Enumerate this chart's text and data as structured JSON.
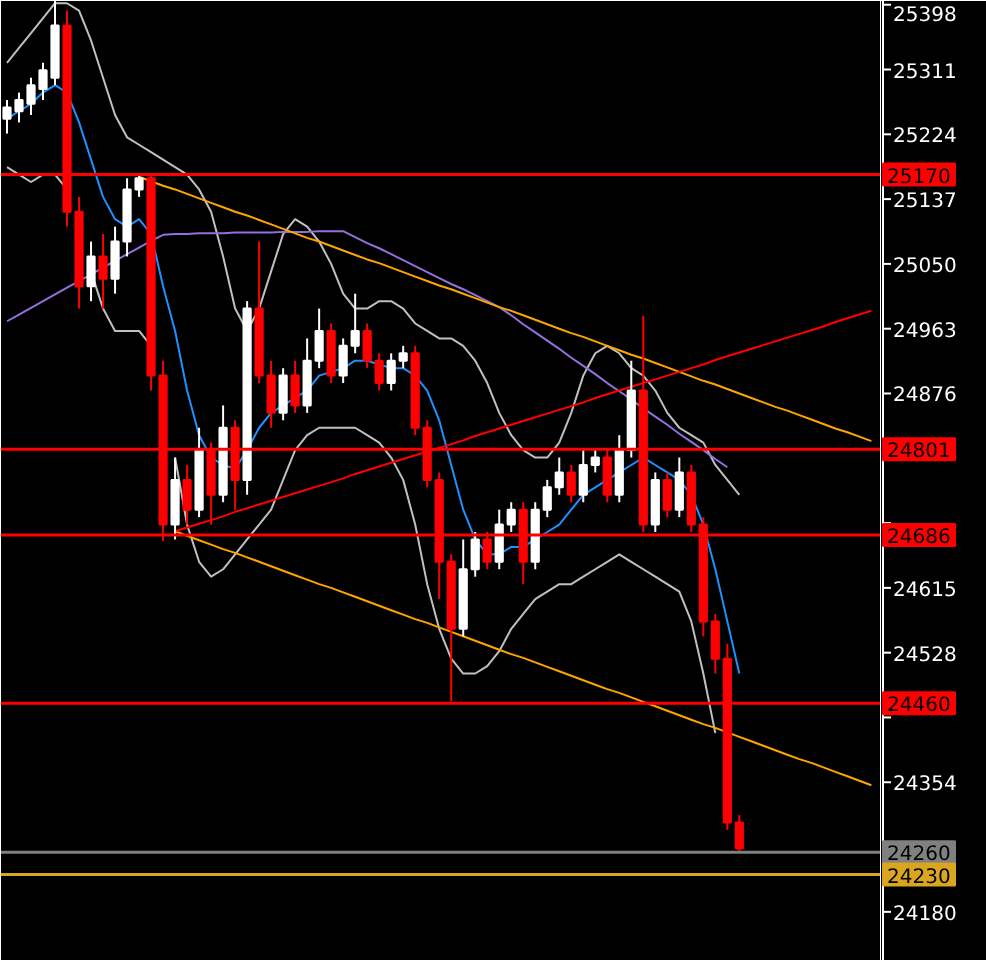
{
  "chart_data": {
    "type": "candlestick",
    "categories": [
      null,
      null,
      null,
      null,
      null,
      null,
      null,
      null,
      null,
      null,
      null,
      null,
      null,
      null,
      null,
      null,
      null,
      null,
      null,
      null,
      null,
      null,
      null,
      null,
      null,
      null,
      null,
      null,
      null,
      null,
      null,
      null,
      null,
      null,
      null,
      null,
      null,
      null,
      null,
      null,
      null,
      null,
      null,
      null,
      null,
      null,
      null,
      null,
      null,
      null,
      null,
      null,
      null,
      null,
      null,
      null,
      null,
      null,
      null,
      null,
      null,
      null,
      null,
      null,
      null,
      null,
      null,
      null,
      null,
      null,
      null,
      null,
      null
    ],
    "ohlc": [
      [
        25245,
        25270,
        25225,
        25260
      ],
      [
        25255,
        25280,
        25240,
        25270
      ],
      [
        25265,
        25300,
        25250,
        25290
      ],
      [
        25285,
        25320,
        25270,
        25310
      ],
      [
        25300,
        25403,
        25290,
        25370
      ],
      [
        25370,
        25390,
        25100,
        25120
      ],
      [
        25120,
        25140,
        24990,
        25020
      ],
      [
        25020,
        25080,
        25000,
        25060
      ],
      [
        25060,
        25090,
        24990,
        25030
      ],
      [
        25030,
        25100,
        25010,
        25080
      ],
      [
        25080,
        25165,
        25060,
        25150
      ],
      [
        25150,
        25172,
        25140,
        25165
      ],
      [
        25165,
        25170,
        24880,
        24900
      ],
      [
        24900,
        24920,
        24678,
        24700
      ],
      [
        24700,
        24790,
        24680,
        24760
      ],
      [
        24760,
        24780,
        24700,
        24720
      ],
      [
        24720,
        24830,
        24710,
        24800
      ],
      [
        24800,
        24810,
        24700,
        24740
      ],
      [
        24740,
        24860,
        24730,
        24830
      ],
      [
        24830,
        24840,
        24720,
        24760
      ],
      [
        24760,
        25000,
        24740,
        24990
      ],
      [
        24990,
        25080,
        24890,
        24900
      ],
      [
        24900,
        24920,
        24830,
        24850
      ],
      [
        24850,
        24910,
        24840,
        24900
      ],
      [
        24900,
        24920,
        24850,
        24860
      ],
      [
        24860,
        24950,
        24850,
        24920
      ],
      [
        24920,
        24990,
        24910,
        24960
      ],
      [
        24960,
        24970,
        24890,
        24900
      ],
      [
        24900,
        24950,
        24890,
        24940
      ],
      [
        24940,
        25010,
        24930,
        24960
      ],
      [
        24960,
        24970,
        24910,
        24920
      ],
      [
        24920,
        24930,
        24880,
        24890
      ],
      [
        24890,
        24930,
        24880,
        24920
      ],
      [
        24920,
        24940,
        24910,
        24930
      ],
      [
        24930,
        24940,
        24820,
        24830
      ],
      [
        24830,
        24840,
        24750,
        24760
      ],
      [
        24760,
        24770,
        24600,
        24650
      ],
      [
        24650,
        24660,
        24463,
        24560
      ],
      [
        24560,
        24680,
        24550,
        24640
      ],
      [
        24640,
        24690,
        24630,
        24680
      ],
      [
        24680,
        24690,
        24640,
        24650
      ],
      [
        24650,
        24720,
        24640,
        24700
      ],
      [
        24700,
        24730,
        24690,
        24720
      ],
      [
        24720,
        24730,
        24620,
        24650
      ],
      [
        24650,
        24730,
        24640,
        24720
      ],
      [
        24720,
        24760,
        24710,
        24750
      ],
      [
        24750,
        24790,
        24740,
        24770
      ],
      [
        24770,
        24780,
        24730,
        24740
      ],
      [
        24740,
        24800,
        24730,
        24780
      ],
      [
        24780,
        24800,
        24770,
        24790
      ],
      [
        24790,
        24800,
        24730,
        24740
      ],
      [
        24740,
        24820,
        24730,
        24800
      ],
      [
        24800,
        24920,
        24790,
        24880
      ],
      [
        24880,
        24980,
        24690,
        24700
      ],
      [
        24700,
        24770,
        24690,
        24760
      ],
      [
        24760,
        24770,
        24710,
        24720
      ],
      [
        24720,
        24790,
        24710,
        24770
      ],
      [
        24770,
        24780,
        24690,
        24700
      ],
      [
        24700,
        24710,
        24550,
        24570
      ],
      [
        24570,
        24580,
        24500,
        24520
      ],
      [
        24520,
        24540,
        24290,
        24300
      ],
      [
        24300,
        24310,
        24262,
        24265
      ],
      null,
      null,
      null,
      null,
      null,
      null,
      null,
      null,
      null,
      null,
      null
    ],
    "colors": [
      "#ffffff",
      "#ffffff",
      "#ffffff",
      "#ffffff",
      "#ffffff",
      "#ff0000",
      "#ff0000",
      "#ffffff",
      "#ff0000",
      "#ffffff",
      "#ffffff",
      "#ffffff",
      "#ff0000",
      "#ff0000",
      "#ffffff",
      "#ff0000",
      "#ffffff",
      "#ff0000",
      "#ffffff",
      "#ff0000",
      "#ffffff",
      "#ff0000",
      "#ff0000",
      "#ffffff",
      "#ff0000",
      "#ffffff",
      "#ffffff",
      "#ff0000",
      "#ffffff",
      "#ffffff",
      "#ff0000",
      "#ff0000",
      "#ffffff",
      "#ffffff",
      "#ff0000",
      "#ff0000",
      "#ff0000",
      "#ff0000",
      "#ffffff",
      "#ffffff",
      "#ff0000",
      "#ffffff",
      "#ffffff",
      "#ff0000",
      "#ffffff",
      "#ffffff",
      "#ffffff",
      "#ff0000",
      "#ffffff",
      "#ffffff",
      "#ff0000",
      "#ffffff",
      "#ffffff",
      "#ff0000",
      "#ffffff",
      "#ff0000",
      "#ffffff",
      "#ff0000",
      "#ff0000",
      "#ff0000",
      "#ff0000",
      "#ff0000",
      null,
      null,
      null,
      null,
      null,
      null,
      null,
      null,
      null,
      null,
      null
    ],
    "series": [
      {
        "type": "line",
        "color": "#c0c0c0",
        "values": [
          25320,
          25340,
          25360,
          25380,
          25400,
          25400,
          25390,
          25350,
          25300,
          25250,
          25220,
          25210,
          25200,
          25190,
          25180,
          25170,
          25150,
          25120,
          25060,
          24990,
          24960,
          24990,
          25040,
          25090,
          25110,
          25100,
          25080,
          25050,
          25010,
          24990,
          24990,
          25000,
          25000,
          24990,
          24970,
          24960,
          24950,
          24950,
          24940,
          24920,
          24890,
          24850,
          24820,
          24800,
          24790,
          24790,
          24810,
          24850,
          24900,
          24930,
          24940,
          24930,
          24910,
          24900,
          24880,
          24850,
          24830,
          24820,
          24810,
          24780,
          24760,
          24740,
          null,
          null,
          null,
          null,
          null,
          null,
          null,
          null,
          null,
          null,
          null
        ]
      },
      {
        "type": "line",
        "color": "#c0c0c0",
        "values": [
          25180,
          25170,
          25160,
          25170,
          25170,
          25150,
          null,
          25040,
          24990,
          24960,
          24960,
          24960,
          24940,
          null,
          24790,
          24700,
          24650,
          24630,
          24640,
          24660,
          24680,
          24700,
          24720,
          24760,
          24800,
          24820,
          24830,
          24830,
          24830,
          24830,
          24820,
          24810,
          24790,
          24760,
          24700,
          24620,
          24560,
          24520,
          24500,
          24500,
          24510,
          24530,
          24560,
          24580,
          24600,
          24610,
          24620,
          24620,
          24630,
          24640,
          24650,
          24660,
          24650,
          24640,
          24630,
          24620,
          24610,
          24570,
          24500,
          24420,
          null,
          null,
          null,
          null,
          null,
          null,
          null,
          null,
          null,
          null,
          null,
          null,
          null
        ]
      },
      {
        "type": "line",
        "color": "#1e90ff",
        "values": [
          25245,
          25255,
          25265,
          25280,
          25290,
          25280,
          25240,
          25190,
          25140,
          25110,
          25100,
          25110,
          25090,
          25020,
          24960,
          24880,
          24820,
          24790,
          24780,
          24775,
          24800,
          24830,
          24850,
          24860,
          24870,
          24880,
          24900,
          24905,
          24910,
          24920,
          24920,
          24915,
          24910,
          24910,
          24900,
          24880,
          24840,
          24780,
          24720,
          24680,
          24660,
          24660,
          24670,
          24670,
          24680,
          24690,
          24700,
          24720,
          24740,
          24750,
          24760,
          24770,
          24780,
          24790,
          24780,
          24770,
          24760,
          24740,
          24700,
          24640,
          24570,
          24500,
          null,
          null,
          null,
          null,
          null,
          null,
          null,
          null,
          null,
          null,
          null
        ]
      },
      {
        "type": "line",
        "color": "#9370db",
        "values": [
          24973,
          24982,
          24991,
          25000,
          25009,
          25018,
          25027,
          25036,
          25045,
          25054,
          25063,
          25072,
          25081,
          25089,
          25090,
          25090,
          25091,
          25091,
          25091,
          25092,
          25092,
          25092,
          25092,
          25093,
          25093,
          25093,
          25094,
          25094,
          25094,
          25086,
          25078,
          25071,
          25063,
          25055,
          25047,
          25039,
          25031,
          25023,
          25016,
          25008,
          25000,
          24992,
          24981,
          24969,
          24958,
          24947,
          24936,
          24924,
          24913,
          24902,
          24890,
          24879,
          24868,
          24856,
          24845,
          24834,
          24822,
          24811,
          24800,
          24788,
          24777,
          null,
          null,
          null,
          null,
          null,
          null,
          null,
          null,
          null,
          null,
          null,
          null
        ]
      },
      {
        "type": "line",
        "color": "#ffa500",
        "values": [
          null,
          null,
          null,
          null,
          null,
          null,
          null,
          null,
          null,
          null,
          null,
          25167,
          25161,
          25155,
          25150,
          25144,
          25138,
          25132,
          25126,
          25120,
          25115,
          25109,
          25103,
          25097,
          25091,
          25085,
          25080,
          25074,
          25068,
          25062,
          25056,
          25051,
          25045,
          25039,
          25033,
          25027,
          25021,
          25016,
          25010,
          25004,
          24998,
          24992,
          24987,
          24981,
          24975,
          24969,
          24963,
          24957,
          24952,
          24946,
          24940,
          24934,
          24928,
          24923,
          24917,
          24911,
          24905,
          24899,
          24893,
          24888,
          24882,
          24876,
          24870,
          24864,
          24858,
          24853,
          24847,
          24841,
          24835,
          24829,
          24824,
          24818,
          24812
        ]
      },
      {
        "type": "line",
        "color": "#ffa500",
        "values": [
          null,
          null,
          null,
          null,
          null,
          null,
          null,
          null,
          null,
          null,
          null,
          null,
          null,
          null,
          24691,
          24685,
          24679,
          24673,
          24667,
          24662,
          24656,
          24650,
          24644,
          24638,
          24632,
          24626,
          24620,
          24615,
          24609,
          24603,
          24597,
          24591,
          24585,
          24579,
          24573,
          24568,
          24562,
          24556,
          24550,
          24544,
          24538,
          24532,
          24526,
          24521,
          24515,
          24509,
          24503,
          24497,
          24491,
          24485,
          24479,
          24474,
          24468,
          24462,
          24456,
          24450,
          24444,
          24438,
          24432,
          24427,
          24421,
          24415,
          24409,
          24403,
          24397,
          24391,
          24385,
          24380,
          24374,
          24368,
          24362,
          24356,
          24350
        ]
      },
      {
        "type": "line",
        "color": "#ff0000",
        "values": [
          null,
          null,
          null,
          null,
          null,
          null,
          null,
          null,
          null,
          null,
          null,
          null,
          null,
          null,
          24691,
          24696,
          24701,
          24706,
          24711,
          24717,
          24722,
          24727,
          24732,
          24737,
          24742,
          24747,
          24752,
          24757,
          24762,
          24768,
          24773,
          24778,
          24783,
          24788,
          24793,
          24798,
          24803,
          24808,
          24813,
          24819,
          24824,
          24829,
          24834,
          24839,
          24844,
          24849,
          24854,
          24859,
          24864,
          24870,
          24875,
          24880,
          24885,
          24890,
          24895,
          24900,
          24905,
          24910,
          24915,
          24921,
          24926,
          24931,
          24936,
          24941,
          24946,
          24951,
          24956,
          24961,
          24966,
          24972,
          24977,
          24982,
          24987
        ]
      }
    ],
    "ylim": [
      24114,
      25403
    ],
    "yticks": [
      25398,
      25311,
      25224,
      25137,
      25050,
      24963,
      24876,
      {
        "value": 24789,
        "label": null
      },
      {
        "value": 24702,
        "label": null
      },
      24615,
      24528,
      {
        "value": 24441,
        "label": null
      },
      24354,
      {
        "value": 24267,
        "label": null
      },
      24180
    ],
    "tick_labels": "y",
    "grid": false,
    "ref_lines": [
      {
        "axis": "y",
        "value": 25170,
        "label": "25170",
        "color": "#ff0000"
      },
      {
        "axis": "y",
        "value": 24801,
        "label": "24801",
        "color": "#ff0000"
      },
      {
        "axis": "y",
        "value": 24686,
        "label": "24686",
        "color": "#ff0000"
      },
      {
        "axis": "y",
        "value": 24460,
        "label": "24460",
        "color": "#ff0000"
      },
      {
        "axis": "y",
        "value": 24260,
        "label": "24260",
        "color": "#808080"
      },
      {
        "axis": "y",
        "value": 24230,
        "label": "24230",
        "color": "#daa520"
      }
    ]
  }
}
